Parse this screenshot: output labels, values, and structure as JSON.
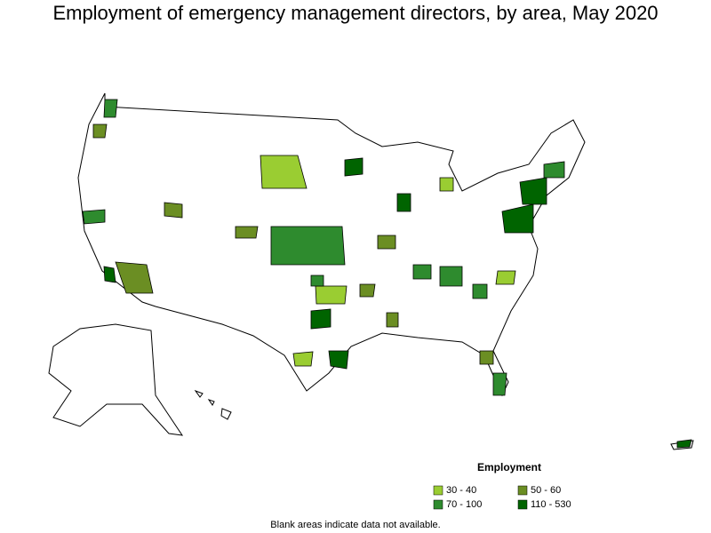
{
  "title": "Employment of emergency management directors, by area, May 2020",
  "legend": {
    "title": "Employment",
    "items": [
      {
        "label": "30 - 40",
        "color": "#9acd32"
      },
      {
        "label": "50 - 60",
        "color": "#6b8e23"
      },
      {
        "label": "70 - 100",
        "color": "#2e8b2e"
      },
      {
        "label": "110 - 530",
        "color": "#006400"
      }
    ]
  },
  "note": "Blank areas indicate data not available."
}
